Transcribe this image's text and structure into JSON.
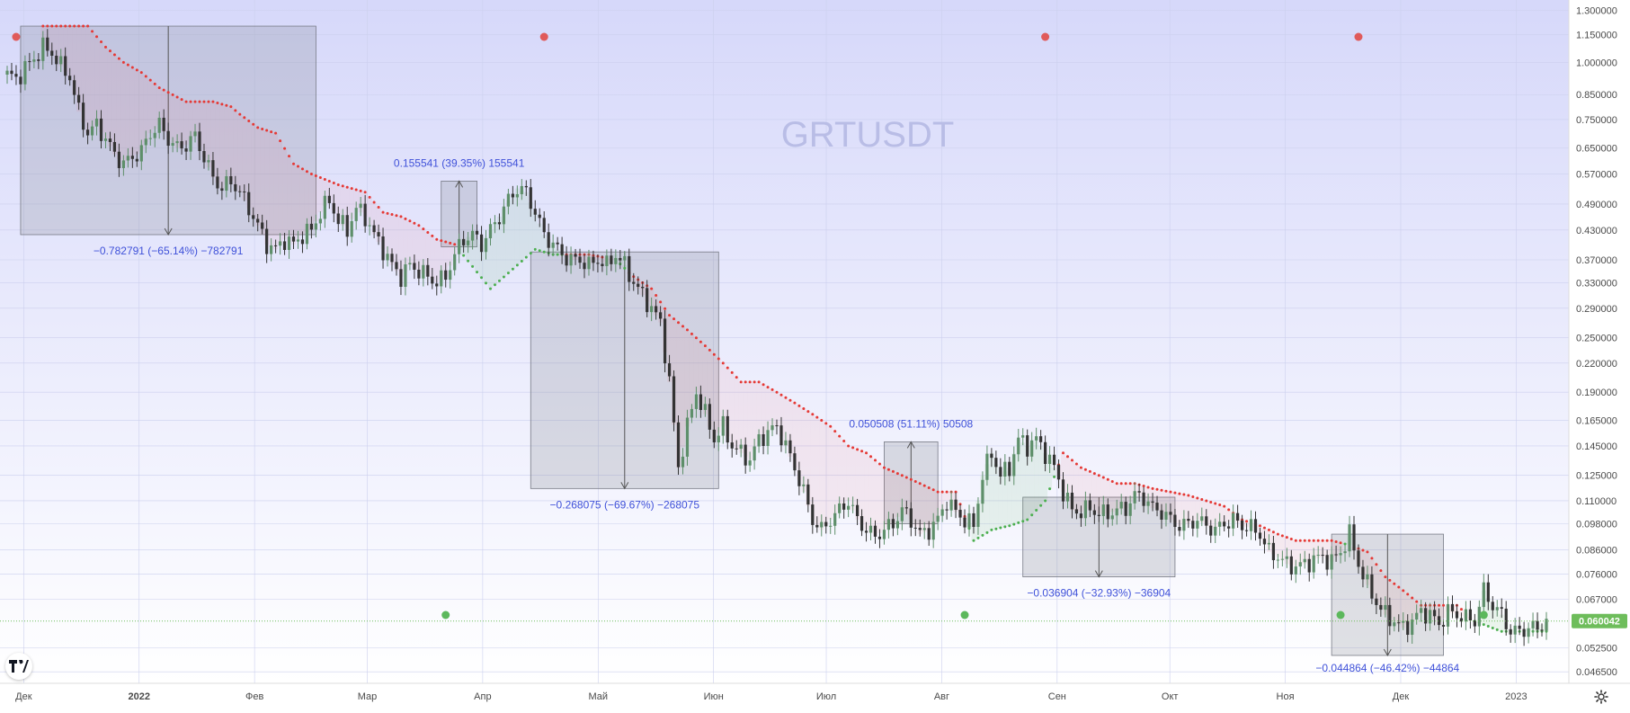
{
  "chart_data": {
    "type": "candlestick",
    "symbol_watermark": "GRTUSDT",
    "price_axis": {
      "scale": "log",
      "ticks": [
        "1.300000",
        "1.150000",
        "1.000000",
        "0.850000",
        "0.750000",
        "0.650000",
        "0.570000",
        "0.490000",
        "0.430000",
        "0.370000",
        "0.330000",
        "0.290000",
        "0.250000",
        "0.220000",
        "0.190000",
        "0.165000",
        "0.145000",
        "0.125000",
        "0.110000",
        "0.098000",
        "0.086000",
        "0.076000",
        "0.067000",
        "0.052500",
        "0.046500"
      ],
      "ylim": [
        0.0455,
        1.32
      ]
    },
    "time_axis": {
      "labels": [
        "Дек",
        "2022",
        "Фев",
        "Мар",
        "Апр",
        "Май",
        "Июн",
        "Июл",
        "Авг",
        "Сен",
        "Окт",
        "Ноя",
        "Дек",
        "2023"
      ]
    },
    "last_price": "0.060042",
    "series": [
      {
        "name": "price",
        "values": [
          [
            0,
            0.94
          ],
          [
            2,
            0.92
          ],
          [
            4,
            0.97
          ],
          [
            6,
            1.02
          ],
          [
            8,
            1.08
          ],
          [
            10,
            1.05
          ],
          [
            12,
            0.98
          ],
          [
            14,
            0.93
          ],
          [
            16,
            0.78
          ],
          [
            18,
            0.7
          ],
          [
            20,
            0.73
          ],
          [
            22,
            0.68
          ],
          [
            24,
            0.63
          ],
          [
            26,
            0.6
          ],
          [
            28,
            0.62
          ],
          [
            30,
            0.64
          ],
          [
            32,
            0.7
          ],
          [
            34,
            0.73
          ],
          [
            36,
            0.68
          ],
          [
            38,
            0.65
          ],
          [
            40,
            0.66
          ],
          [
            42,
            0.69
          ],
          [
            44,
            0.62
          ],
          [
            46,
            0.56
          ],
          [
            48,
            0.53
          ],
          [
            50,
            0.55
          ],
          [
            52,
            0.52
          ],
          [
            54,
            0.48
          ],
          [
            56,
            0.44
          ],
          [
            58,
            0.4
          ],
          [
            60,
            0.39
          ],
          [
            62,
            0.41
          ],
          [
            64,
            0.4
          ],
          [
            66,
            0.42
          ],
          [
            68,
            0.43
          ],
          [
            70,
            0.47
          ],
          [
            72,
            0.5
          ],
          [
            74,
            0.45
          ],
          [
            76,
            0.43
          ],
          [
            78,
            0.48
          ],
          [
            80,
            0.46
          ],
          [
            82,
            0.42
          ],
          [
            84,
            0.39
          ],
          [
            86,
            0.36
          ],
          [
            88,
            0.34
          ],
          [
            90,
            0.36
          ],
          [
            92,
            0.35
          ],
          [
            94,
            0.34
          ],
          [
            96,
            0.33
          ],
          [
            98,
            0.34
          ],
          [
            100,
            0.38
          ],
          [
            102,
            0.41
          ],
          [
            104,
            0.42
          ],
          [
            106,
            0.4
          ],
          [
            108,
            0.43
          ],
          [
            110,
            0.46
          ],
          [
            112,
            0.5
          ],
          [
            114,
            0.53
          ],
          [
            116,
            0.52
          ],
          [
            118,
            0.47
          ],
          [
            120,
            0.42
          ],
          [
            122,
            0.4
          ],
          [
            124,
            0.38
          ],
          [
            126,
            0.37
          ],
          [
            128,
            0.37
          ],
          [
            130,
            0.36
          ],
          [
            132,
            0.37
          ],
          [
            134,
            0.36
          ],
          [
            136,
            0.38
          ],
          [
            138,
            0.36
          ],
          [
            140,
            0.33
          ],
          [
            142,
            0.31
          ],
          [
            144,
            0.29
          ],
          [
            146,
            0.27
          ],
          [
            148,
            0.2
          ],
          [
            150,
            0.13
          ],
          [
            152,
            0.16
          ],
          [
            154,
            0.19
          ],
          [
            156,
            0.17
          ],
          [
            158,
            0.15
          ],
          [
            160,
            0.16
          ],
          [
            162,
            0.145
          ],
          [
            164,
            0.14
          ],
          [
            166,
            0.135
          ],
          [
            168,
            0.15
          ],
          [
            170,
            0.155
          ],
          [
            172,
            0.16
          ],
          [
            174,
            0.145
          ],
          [
            176,
            0.13
          ],
          [
            178,
            0.115
          ],
          [
            180,
            0.1
          ],
          [
            182,
            0.095
          ],
          [
            184,
            0.1
          ],
          [
            186,
            0.105
          ],
          [
            188,
            0.11
          ],
          [
            190,
            0.1
          ],
          [
            192,
            0.095
          ],
          [
            194,
            0.092
          ],
          [
            196,
            0.095
          ],
          [
            198,
            0.098
          ],
          [
            200,
            0.105
          ],
          [
            202,
            0.1
          ],
          [
            204,
            0.093
          ],
          [
            206,
            0.095
          ],
          [
            208,
            0.1
          ],
          [
            210,
            0.11
          ],
          [
            212,
            0.104
          ],
          [
            214,
            0.1
          ],
          [
            216,
            0.097
          ],
          [
            218,
            0.125
          ],
          [
            220,
            0.14
          ],
          [
            222,
            0.125
          ],
          [
            224,
            0.13
          ],
          [
            226,
            0.15
          ],
          [
            228,
            0.145
          ],
          [
            230,
            0.15
          ],
          [
            232,
            0.14
          ],
          [
            234,
            0.13
          ],
          [
            236,
            0.115
          ],
          [
            238,
            0.105
          ],
          [
            240,
            0.104
          ],
          [
            242,
            0.106
          ],
          [
            244,
            0.103
          ],
          [
            246,
            0.103
          ],
          [
            248,
            0.105
          ],
          [
            250,
            0.106
          ],
          [
            252,
            0.113
          ],
          [
            254,
            0.112
          ],
          [
            256,
            0.106
          ],
          [
            258,
            0.104
          ],
          [
            260,
            0.1
          ],
          [
            262,
            0.097
          ],
          [
            264,
            0.098
          ],
          [
            266,
            0.1
          ],
          [
            268,
            0.097
          ],
          [
            270,
            0.095
          ],
          [
            272,
            0.098
          ],
          [
            274,
            0.1
          ],
          [
            276,
            0.097
          ],
          [
            278,
            0.096
          ],
          [
            280,
            0.093
          ],
          [
            282,
            0.085
          ],
          [
            284,
            0.083
          ],
          [
            286,
            0.08
          ],
          [
            288,
            0.079
          ],
          [
            290,
            0.08
          ],
          [
            292,
            0.082
          ],
          [
            294,
            0.083
          ],
          [
            296,
            0.081
          ],
          [
            298,
            0.085
          ],
          [
            300,
            0.093
          ],
          [
            302,
            0.08
          ],
          [
            304,
            0.072
          ],
          [
            306,
            0.066
          ],
          [
            308,
            0.062
          ],
          [
            310,
            0.06
          ],
          [
            312,
            0.058
          ],
          [
            314,
            0.06
          ],
          [
            316,
            0.063
          ],
          [
            318,
            0.062
          ],
          [
            320,
            0.059
          ],
          [
            322,
            0.063
          ],
          [
            324,
            0.062
          ],
          [
            326,
            0.061
          ],
          [
            328,
            0.06
          ],
          [
            330,
            0.07
          ],
          [
            332,
            0.065
          ],
          [
            334,
            0.062
          ],
          [
            336,
            0.057
          ],
          [
            338,
            0.057
          ],
          [
            340,
            0.058
          ],
          [
            342,
            0.058
          ],
          [
            344,
            0.06
          ]
        ]
      },
      {
        "name": "psar",
        "values": [
          [
            8,
            1.2
          ],
          [
            18,
            1.2
          ],
          [
            22,
            1.08
          ],
          [
            26,
            1.0
          ],
          [
            30,
            0.95
          ],
          [
            34,
            0.88
          ],
          [
            40,
            0.82
          ],
          [
            46,
            0.82
          ],
          [
            50,
            0.8
          ],
          [
            52,
            0.77
          ],
          [
            56,
            0.72
          ],
          [
            60,
            0.7
          ],
          [
            64,
            0.6
          ],
          [
            68,
            0.57
          ],
          [
            74,
            0.54
          ],
          [
            80,
            0.52
          ],
          [
            84,
            0.47
          ],
          [
            88,
            0.46
          ],
          [
            92,
            0.44
          ],
          [
            96,
            0.41
          ],
          [
            100,
            0.4
          ],
          [
            108,
            0.32
          ],
          [
            118,
            0.39
          ],
          [
            122,
            0.38
          ],
          [
            130,
            0.38
          ],
          [
            136,
            0.37
          ],
          [
            140,
            0.34
          ],
          [
            144,
            0.32
          ],
          [
            148,
            0.28
          ],
          [
            152,
            0.26
          ],
          [
            156,
            0.24
          ],
          [
            160,
            0.22
          ],
          [
            164,
            0.2
          ],
          [
            168,
            0.2
          ],
          [
            172,
            0.19
          ],
          [
            176,
            0.18
          ],
          [
            180,
            0.17
          ],
          [
            184,
            0.16
          ],
          [
            188,
            0.145
          ],
          [
            192,
            0.14
          ],
          [
            196,
            0.13
          ],
          [
            200,
            0.125
          ],
          [
            204,
            0.12
          ],
          [
            208,
            0.115
          ],
          [
            212,
            0.115
          ],
          [
            216,
            0.09
          ],
          [
            220,
            0.095
          ],
          [
            224,
            0.097
          ],
          [
            228,
            0.1
          ],
          [
            232,
            0.11
          ],
          [
            236,
            0.14
          ],
          [
            240,
            0.13
          ],
          [
            244,
            0.125
          ],
          [
            248,
            0.12
          ],
          [
            252,
            0.12
          ],
          [
            256,
            0.117
          ],
          [
            260,
            0.115
          ],
          [
            264,
            0.113
          ],
          [
            268,
            0.11
          ],
          [
            272,
            0.107
          ],
          [
            276,
            0.1
          ],
          [
            280,
            0.097
          ],
          [
            284,
            0.093
          ],
          [
            288,
            0.09
          ],
          [
            292,
            0.09
          ],
          [
            296,
            0.09
          ],
          [
            300,
            0.088
          ],
          [
            304,
            0.085
          ],
          [
            308,
            0.075
          ],
          [
            312,
            0.07
          ],
          [
            316,
            0.065
          ],
          [
            320,
            0.065
          ],
          [
            324,
            0.065
          ],
          [
            328,
            0.06
          ],
          [
            334,
            0.057
          ],
          [
            338,
            0.057
          ],
          [
            344,
            0.057
          ]
        ]
      }
    ],
    "measurements": [
      {
        "label": "−0.782791 (−65.14%) −782791"
      },
      {
        "label": "0.155541 (39.35%) 155541"
      },
      {
        "label": "−0.268075 (−69.67%) −268075"
      },
      {
        "label": "0.050508 (51.11%) 50508"
      },
      {
        "label": "−0.036904 (−32.93%) −36904"
      },
      {
        "label": "−0.044864 (−46.42%) −44864"
      }
    ],
    "signal_dots": [
      {
        "color": "#e05a5a",
        "x": 2,
        "y": 1.15
      },
      {
        "color": "#e05a5a",
        "x": 120,
        "y": 1.15
      },
      {
        "color": "#e05a5a",
        "x": 232,
        "y": 1.15
      },
      {
        "color": "#e05a5a",
        "x": 302,
        "y": 1.15
      },
      {
        "color": "#5cb85c",
        "x": 98,
        "y": 0.063
      },
      {
        "color": "#5cb85c",
        "x": 214,
        "y": 0.063
      },
      {
        "color": "#5cb85c",
        "x": 298,
        "y": 0.063
      },
      {
        "color": "#5cb85c",
        "x": 330,
        "y": 0.063
      }
    ],
    "colors": {
      "up": "#5e8f6a",
      "down": "#333333",
      "psar_down": "#e53935",
      "psar_up": "#4caf50",
      "measure_text": "#3f51d9",
      "last_price_bg": "#6ebd5b"
    },
    "grid": true
  },
  "icons": {
    "logo": "tradingview-logo-icon",
    "settings": "gear-icon"
  }
}
